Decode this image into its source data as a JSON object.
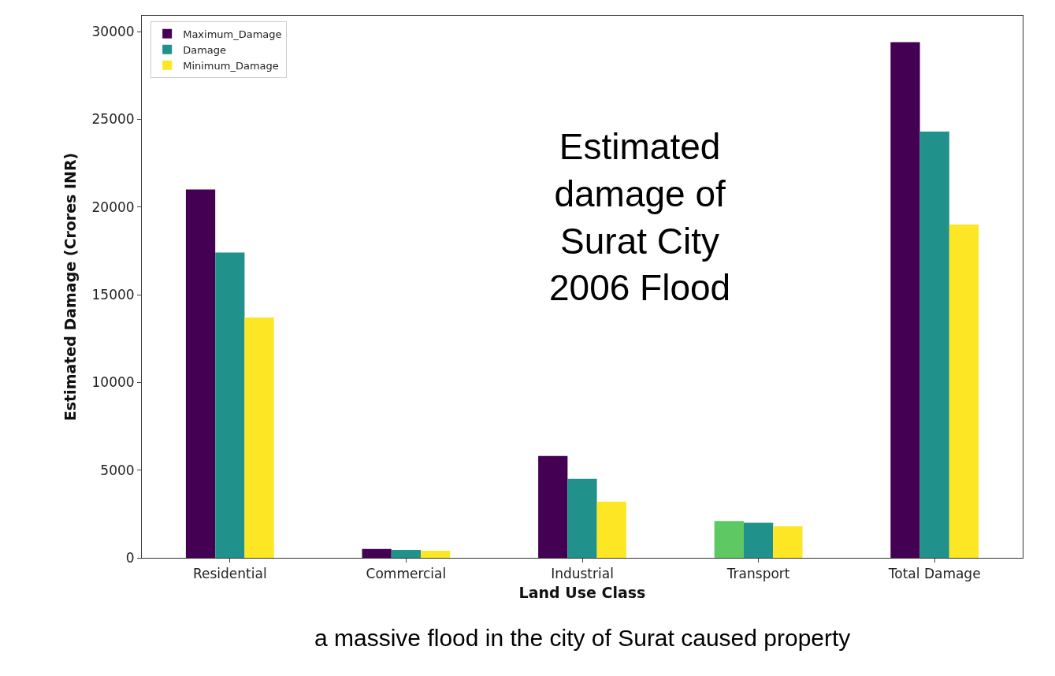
{
  "chart_data": {
    "type": "bar",
    "xlabel": "Land Use Class",
    "ylabel": "Estimated Damage (Crores INR)",
    "categories": [
      "Residential",
      "Commercial",
      "Industrial",
      "Transport",
      "Total Damage"
    ],
    "series": [
      {
        "name": "Maximum_Damage",
        "color": "#440154",
        "colors": [
          null,
          null,
          null,
          "#5ec962",
          null
        ],
        "values": [
          21000,
          500,
          5800,
          2100,
          29400
        ]
      },
      {
        "name": "Damage",
        "color": "#21918c",
        "values": [
          17400,
          450,
          4500,
          2000,
          24300
        ]
      },
      {
        "name": "Minimum_Damage",
        "color": "#fde725",
        "values": [
          13700,
          400,
          3200,
          1800,
          19000
        ]
      }
    ],
    "ylim": [
      0,
      30900
    ],
    "yticks": [
      0,
      5000,
      10000,
      15000,
      20000,
      25000,
      30000
    ],
    "grid": false,
    "legend": "top left",
    "annotations": [
      "Estimated\ndamage of\nSurat City\n2006 Flood",
      "a massive flood in the city of Surat caused property"
    ]
  }
}
